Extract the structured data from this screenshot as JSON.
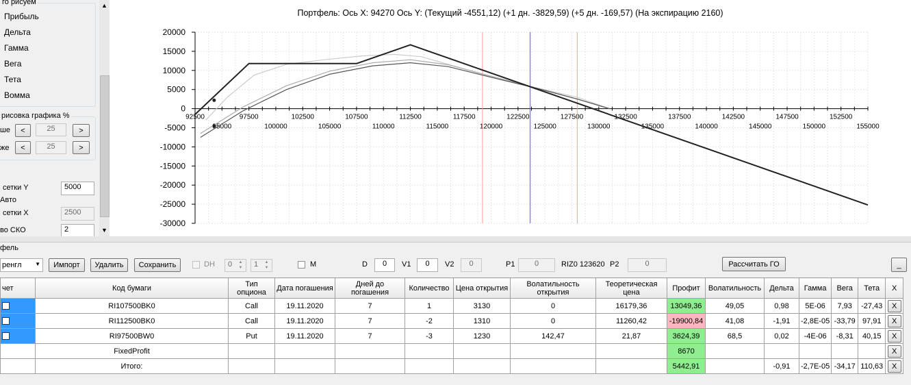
{
  "left_panel": {
    "plot_group_title": "го рисуем",
    "plot_items": [
      "Прибыль",
      "Дельта",
      "Гамма",
      "Вега",
      "Тета",
      "Вомма"
    ],
    "range_group_title": "рисовка графика %",
    "above_label": "ше",
    "below_label": "же",
    "above_value": "25",
    "below_value": "25",
    "grid_y_label": "сетки Y",
    "grid_y_value": "5000",
    "auto_label": "Авто",
    "grid_x_label": "сетки X",
    "grid_x_value": "2500",
    "sko_label": "во СКО",
    "sko_value": "2",
    "prev_glyph": "<",
    "next_glyph": ">"
  },
  "chart_title": "Портфель: Ось X: 94270 Ось Y:  (Текущий -4551,12)  (+1 дн. -3829,59)  (+5 дн. -169,57)  (На экспирацию 2160)",
  "chart_data": {
    "type": "line",
    "xlim": [
      92500,
      155000
    ],
    "ylim": [
      -30000,
      20000
    ],
    "y_ticks": [
      20000,
      15000,
      10000,
      5000,
      0,
      -5000,
      -10000,
      -15000,
      -20000,
      -25000,
      -30000
    ],
    "y_tick_labels": [
      "20000",
      "15000",
      "10000",
      "5000",
      "0",
      "-5000",
      "-10000",
      "-15000",
      "-20000",
      "-25000",
      "-30000"
    ],
    "x_ticks_upper": [
      92500,
      97500,
      102500,
      107500,
      112500,
      117500,
      122500,
      127500,
      132500,
      137500,
      142500,
      147500,
      152500
    ],
    "x_ticks_lower": [
      95000,
      100000,
      105000,
      110000,
      115000,
      120000,
      125000,
      130000,
      135000,
      140000,
      145000,
      150000,
      155000
    ],
    "grid": true,
    "marker_point": [
      94270,
      2200
    ],
    "vlines": [
      {
        "x": 119200,
        "color": "#ff9999"
      },
      {
        "x": 123620,
        "color": "#6666aa"
      },
      {
        "x": 128000,
        "color": "#ff9999"
      }
    ],
    "series": [
      {
        "color": "#222222",
        "width": 2,
        "points": [
          [
            92500,
            -1500
          ],
          [
            97500,
            11800
          ],
          [
            98000,
            11800
          ],
          [
            107500,
            11800
          ],
          [
            112500,
            16700
          ],
          [
            155000,
            -25200
          ]
        ]
      },
      {
        "color": "#cccccc",
        "width": 1.2,
        "points": [
          [
            93500,
            -3000
          ],
          [
            95500,
            3000
          ],
          [
            98000,
            8800
          ],
          [
            101000,
            11600
          ],
          [
            104500,
            12800
          ],
          [
            108000,
            13800
          ],
          [
            111000,
            14200
          ],
          [
            113500,
            13600
          ],
          [
            117000,
            10800
          ],
          [
            121000,
            7500
          ],
          [
            124000,
            5600
          ],
          [
            128000,
            3000
          ],
          [
            131000,
            0
          ]
        ]
      },
      {
        "color": "#aaaaaa",
        "width": 1.2,
        "points": [
          [
            93000,
            -6500
          ],
          [
            97000,
            500
          ],
          [
            101000,
            6000
          ],
          [
            105000,
            9800
          ],
          [
            109000,
            12000
          ],
          [
            112500,
            12800
          ],
          [
            116000,
            11500
          ],
          [
            120000,
            8500
          ],
          [
            124000,
            5600
          ],
          [
            128000,
            2500
          ],
          [
            131000,
            0
          ]
        ]
      },
      {
        "color": "#555555",
        "width": 1.2,
        "points": [
          [
            93000,
            -7500
          ],
          [
            97000,
            -500
          ],
          [
            101000,
            5000
          ],
          [
            105000,
            9000
          ],
          [
            109000,
            11200
          ],
          [
            112500,
            12000
          ],
          [
            116000,
            11000
          ],
          [
            120000,
            8200
          ],
          [
            124000,
            5500
          ],
          [
            128000,
            2500
          ],
          [
            131000,
            0
          ]
        ]
      }
    ]
  },
  "portfolio_label": "фель",
  "toolbar": {
    "combo_value": "ренгл",
    "import_label": "Импорт",
    "delete_label": "Удалить",
    "save_label": "Сохранить",
    "dh_label": "DH",
    "spin1_value": "0",
    "spin2_value": "1",
    "m_label": "M",
    "d_label": "D",
    "d_value": "0",
    "v1_label": "V1",
    "v1_value": "0",
    "v2_label": "V2",
    "v2_value": "0",
    "p1_label": "P1",
    "p1_value": "0",
    "riz_label": "RIZ0 123620",
    "p2_label": "P2",
    "p2_value": "0",
    "calc_label": "Рассчитать ГО",
    "min_label": "_"
  },
  "table": {
    "headers": [
      "чет",
      "Код бумаги",
      "Тип опциона",
      "Дата погашения",
      "Дней до погашения",
      "Количество",
      "Цена открытия",
      "Волатильность открытия",
      "Теоретическая цена",
      "Профит",
      "Волатильность",
      "Дельта",
      "Гамма",
      "Вега",
      "Тета",
      "X"
    ],
    "rows": [
      {
        "code": "RI107500BK0",
        "type": "Call",
        "date": "19.11.2020",
        "days": "7",
        "qty": "1",
        "open_price": "3130",
        "open_vol": "0",
        "theo": "16179,36",
        "profit": "13049,36",
        "vol": "49,05",
        "delta": "0,98",
        "gamma": "5E-06",
        "vega": "7,93",
        "theta": "-27,43",
        "x": "X"
      },
      {
        "code": "RI112500BK0",
        "type": "Call",
        "date": "19.11.2020",
        "days": "7",
        "qty": "-2",
        "open_price": "1310",
        "open_vol": "0",
        "theo": "11260,42",
        "profit": "-19900,84",
        "vol": "41,08",
        "delta": "-1,91",
        "gamma": "-2,8E-05",
        "vega": "-33,79",
        "theta": "97,91",
        "x": "X"
      },
      {
        "code": "RI97500BW0",
        "type": "Put",
        "date": "19.11.2020",
        "days": "7",
        "qty": "-3",
        "open_price": "1230",
        "open_vol": "142,47",
        "theo": "21,87",
        "profit": "3624,39",
        "vol": "68,5",
        "delta": "0,02",
        "gamma": "-4E-06",
        "vega": "-8,31",
        "theta": "40,15",
        "x": "X"
      },
      {
        "code": "FixedProfit",
        "type": "",
        "date": "",
        "days": "",
        "qty": "",
        "open_price": "",
        "open_vol": "",
        "theo": "",
        "profit": "8670",
        "vol": "",
        "delta": "",
        "gamma": "",
        "vega": "",
        "theta": "",
        "x": "X"
      },
      {
        "code": "Итого:",
        "type": "",
        "date": "",
        "days": "",
        "qty": "",
        "open_price": "",
        "open_vol": "",
        "theo": "",
        "profit": "5442,91",
        "vol": "",
        "delta": "-0,91",
        "gamma": "-2,7E-05",
        "vega": "-34,17",
        "theta": "110,63",
        "x": "X"
      }
    ]
  },
  "colors": {
    "profit_positive": "#90ee90",
    "profit_negative": "#ffb6c1",
    "selection": "#3399ff"
  }
}
